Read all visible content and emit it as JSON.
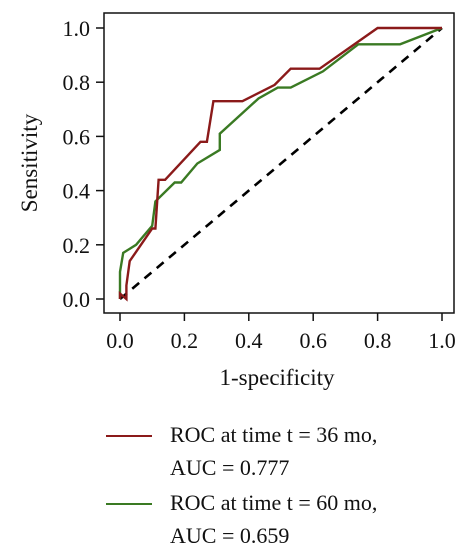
{
  "chart_data": {
    "type": "line",
    "xlabel": "1-specificity",
    "ylabel": "Sensitivity",
    "xlim": [
      0,
      1
    ],
    "ylim": [
      0,
      1
    ],
    "x_ticks": [
      "0.0",
      "0.2",
      "0.4",
      "0.6",
      "0.8",
      "1.0"
    ],
    "y_ticks": [
      "0.0",
      "0.2",
      "0.4",
      "0.6",
      "0.8",
      "1.0"
    ],
    "grid": false,
    "legend_position": "bottom",
    "reference_line": {
      "style": "dashed",
      "color": "#000000",
      "x": [
        0,
        1
      ],
      "y": [
        0,
        1
      ]
    },
    "series": [
      {
        "name": "ROC at time t = 36 mo, AUC = 0.777",
        "name_lines": [
          "ROC at time t = 36 mo,",
          "AUC = 0.777"
        ],
        "color": "#8b1a1a",
        "x": [
          0.0,
          0.0,
          0.02,
          0.02,
          0.03,
          0.1,
          0.11,
          0.12,
          0.14,
          0.25,
          0.27,
          0.29,
          0.38,
          0.48,
          0.53,
          0.62,
          0.8,
          1.0
        ],
        "y": [
          0.0,
          0.02,
          0.0,
          0.05,
          0.14,
          0.26,
          0.26,
          0.44,
          0.44,
          0.58,
          0.58,
          0.73,
          0.73,
          0.79,
          0.85,
          0.85,
          1.0,
          1.0
        ]
      },
      {
        "name": "ROC at time t = 60 mo, AUC = 0.659",
        "name_lines": [
          "ROC at time t = 60 mo,",
          "AUC = 0.659"
        ],
        "color": "#3a7a23",
        "x": [
          0.0,
          0.0,
          0.01,
          0.05,
          0.1,
          0.11,
          0.17,
          0.19,
          0.24,
          0.31,
          0.31,
          0.43,
          0.49,
          0.53,
          0.63,
          0.74,
          0.87,
          1.0
        ],
        "y": [
          0.0,
          0.1,
          0.17,
          0.2,
          0.27,
          0.36,
          0.43,
          0.43,
          0.5,
          0.55,
          0.61,
          0.74,
          0.78,
          0.78,
          0.84,
          0.94,
          0.94,
          1.0
        ]
      }
    ]
  }
}
